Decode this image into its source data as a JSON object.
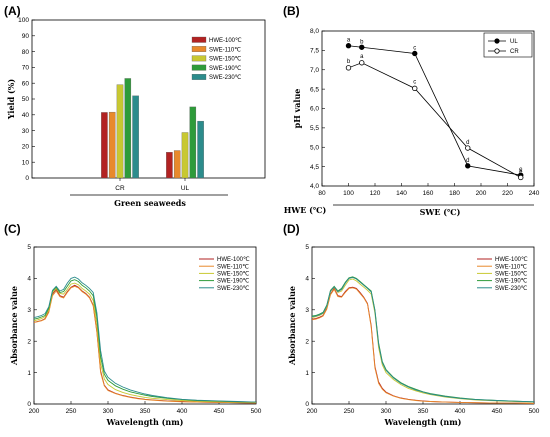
{
  "panels": {
    "A": {
      "label": "(A)"
    },
    "B": {
      "label": "(B)"
    },
    "C": {
      "label": "(C)"
    },
    "D": {
      "label": "(D)"
    }
  },
  "colors": {
    "HWE-100℃": "#b22222",
    "SWE-110℃": "#e8892c",
    "SWE-150℃": "#c8c832",
    "SWE-190℃": "#2e9b3a",
    "SWE-230℃": "#2c8c8c"
  },
  "chart_data": [
    {
      "id": "A",
      "type": "bar",
      "ylabel": "Yield (%)",
      "xlabel": "Green seaweeds",
      "ylim": [
        0,
        100
      ],
      "yticks": [
        0,
        10,
        20,
        30,
        40,
        50,
        60,
        70,
        80,
        90,
        100
      ],
      "categories": [
        "CR",
        "UL"
      ],
      "series": [
        {
          "name": "HWE-100℃",
          "values": [
            41.5,
            16.3
          ]
        },
        {
          "name": "SWE-110℃",
          "values": [
            41.7,
            17.4
          ]
        },
        {
          "name": "SWE-150℃",
          "values": [
            59.1,
            28.8
          ]
        },
        {
          "name": "SWE-190℃",
          "values": [
            63.0,
            45.0
          ]
        },
        {
          "name": "SWE-230℃",
          "values": [
            52.0,
            36.0
          ]
        }
      ],
      "legend_position": "top-right"
    },
    {
      "id": "B",
      "type": "line",
      "ylabel": "pH value",
      "xlabel_left": "HWE (℃)",
      "xlabel_right": "SWE (℃)",
      "xlim": [
        80,
        240
      ],
      "xticks": [
        80,
        100,
        120,
        140,
        160,
        180,
        200,
        220,
        240
      ],
      "ylim": [
        4.0,
        8.0
      ],
      "yticks": [
        "4,0",
        "4,5",
        "5,0",
        "5,5",
        "6,0",
        "6,5",
        "7,0",
        "7,5",
        "8,0"
      ],
      "ytick_values": [
        4.0,
        4.5,
        5.0,
        5.5,
        6.0,
        6.5,
        7.0,
        7.5,
        8.0
      ],
      "series": [
        {
          "name": "UL",
          "marker": "filled",
          "x": [
            100,
            110,
            150,
            190,
            230
          ],
          "y": [
            7.62,
            7.58,
            7.42,
            4.52,
            4.28
          ],
          "labels": [
            "a",
            "b",
            "c",
            "d",
            "e"
          ]
        },
        {
          "name": "CR",
          "marker": "open",
          "x": [
            100,
            110,
            150,
            190,
            230
          ],
          "y": [
            7.05,
            7.18,
            6.52,
            4.98,
            4.22
          ],
          "labels": [
            "b",
            "a",
            "c",
            "d",
            "e"
          ]
        }
      ],
      "legend_position": "top-right"
    },
    {
      "id": "C",
      "type": "line",
      "ylabel": "Absorbance value",
      "xlabel": "Wavelength (nm)",
      "xlim": [
        200,
        500
      ],
      "xticks": [
        200,
        250,
        300,
        350,
        400,
        450,
        500
      ],
      "ylim": [
        0,
        5
      ],
      "yticks": [
        0,
        1,
        2,
        3,
        4,
        5
      ],
      "x": [
        200,
        205,
        210,
        215,
        220,
        225,
        230,
        235,
        240,
        245,
        250,
        255,
        260,
        265,
        270,
        275,
        280,
        285,
        290,
        295,
        300,
        310,
        320,
        330,
        340,
        350,
        360,
        380,
        400,
        420,
        450,
        475,
        500
      ],
      "series": [
        {
          "name": "HWE-100℃",
          "values": [
            2.6,
            2.63,
            2.66,
            2.72,
            2.95,
            3.5,
            3.65,
            3.45,
            3.4,
            3.58,
            3.72,
            3.78,
            3.72,
            3.6,
            3.52,
            3.4,
            3.15,
            2.3,
            1.05,
            0.6,
            0.45,
            0.34,
            0.27,
            0.22,
            0.18,
            0.15,
            0.13,
            0.1,
            0.08,
            0.06,
            0.05,
            0.04,
            0.03
          ]
        },
        {
          "name": "SWE-110℃",
          "values": [
            2.6,
            2.62,
            2.65,
            2.7,
            2.92,
            3.45,
            3.6,
            3.42,
            3.38,
            3.55,
            3.7,
            3.75,
            3.7,
            3.58,
            3.5,
            3.38,
            3.12,
            2.28,
            1.0,
            0.58,
            0.43,
            0.33,
            0.26,
            0.21,
            0.17,
            0.14,
            0.12,
            0.09,
            0.07,
            0.06,
            0.05,
            0.04,
            0.03
          ]
        },
        {
          "name": "SWE-150℃",
          "values": [
            2.65,
            2.68,
            2.72,
            2.78,
            3.0,
            3.55,
            3.68,
            3.52,
            3.5,
            3.65,
            3.82,
            3.85,
            3.8,
            3.68,
            3.6,
            3.5,
            3.3,
            2.55,
            1.3,
            0.8,
            0.62,
            0.46,
            0.37,
            0.3,
            0.25,
            0.21,
            0.18,
            0.14,
            0.11,
            0.09,
            0.07,
            0.06,
            0.05
          ]
        },
        {
          "name": "SWE-190℃",
          "values": [
            2.7,
            2.73,
            2.77,
            2.82,
            3.05,
            3.6,
            3.72,
            3.55,
            3.58,
            3.75,
            3.92,
            3.96,
            3.9,
            3.78,
            3.7,
            3.6,
            3.45,
            2.75,
            1.5,
            0.95,
            0.75,
            0.58,
            0.47,
            0.39,
            0.33,
            0.28,
            0.24,
            0.18,
            0.14,
            0.11,
            0.09,
            0.07,
            0.06
          ]
        },
        {
          "name": "SWE-230℃",
          "values": [
            2.75,
            2.78,
            2.82,
            2.88,
            3.1,
            3.62,
            3.75,
            3.6,
            3.65,
            3.85,
            4.0,
            4.04,
            3.98,
            3.86,
            3.78,
            3.68,
            3.55,
            2.9,
            1.7,
            1.05,
            0.85,
            0.66,
            0.54,
            0.45,
            0.38,
            0.32,
            0.27,
            0.2,
            0.15,
            0.12,
            0.1,
            0.08,
            0.06
          ]
        }
      ],
      "legend_position": "top-right"
    },
    {
      "id": "D",
      "type": "line",
      "ylabel": "Absorbance value",
      "xlabel": "Wavelength (nm)",
      "xlim": [
        200,
        500
      ],
      "xticks": [
        200,
        250,
        300,
        350,
        400,
        450,
        500
      ],
      "ylim": [
        0,
        5
      ],
      "yticks": [
        0,
        1,
        2,
        3,
        4,
        5
      ],
      "x": [
        200,
        205,
        210,
        215,
        220,
        225,
        230,
        235,
        240,
        245,
        250,
        255,
        260,
        265,
        270,
        275,
        280,
        285,
        290,
        295,
        300,
        310,
        320,
        330,
        340,
        350,
        360,
        380,
        400,
        420,
        450,
        475,
        500
      ],
      "series": [
        {
          "name": "HWE-100℃",
          "values": [
            2.7,
            2.72,
            2.76,
            2.82,
            3.05,
            3.5,
            3.68,
            3.45,
            3.42,
            3.58,
            3.7,
            3.72,
            3.68,
            3.55,
            3.4,
            3.2,
            2.5,
            1.2,
            0.7,
            0.5,
            0.38,
            0.26,
            0.19,
            0.15,
            0.12,
            0.1,
            0.08,
            0.06,
            0.05,
            0.04,
            0.03,
            0.03,
            0.02
          ]
        },
        {
          "name": "SWE-110℃",
          "values": [
            2.68,
            2.7,
            2.74,
            2.8,
            3.02,
            3.48,
            3.65,
            3.42,
            3.4,
            3.55,
            3.68,
            3.7,
            3.66,
            3.52,
            3.38,
            3.18,
            2.45,
            1.15,
            0.66,
            0.47,
            0.36,
            0.25,
            0.18,
            0.14,
            0.11,
            0.09,
            0.08,
            0.06,
            0.05,
            0.04,
            0.03,
            0.03,
            0.02
          ]
        },
        {
          "name": "SWE-150℃",
          "values": [
            2.75,
            2.78,
            2.82,
            2.88,
            3.1,
            3.58,
            3.72,
            3.55,
            3.6,
            3.78,
            3.95,
            3.98,
            3.92,
            3.82,
            3.72,
            3.62,
            3.5,
            2.9,
            1.8,
            1.25,
            1.0,
            0.78,
            0.62,
            0.5,
            0.42,
            0.35,
            0.3,
            0.22,
            0.17,
            0.13,
            0.1,
            0.08,
            0.06
          ]
        },
        {
          "name": "SWE-190℃",
          "values": [
            2.8,
            2.82,
            2.86,
            2.92,
            3.15,
            3.62,
            3.75,
            3.6,
            3.68,
            3.88,
            4.02,
            4.05,
            4.0,
            3.9,
            3.8,
            3.7,
            3.6,
            3.0,
            1.95,
            1.35,
            1.1,
            0.85,
            0.68,
            0.56,
            0.47,
            0.39,
            0.33,
            0.25,
            0.19,
            0.15,
            0.11,
            0.09,
            0.07
          ]
        },
        {
          "name": "SWE-230℃",
          "values": [
            2.78,
            2.8,
            2.84,
            2.9,
            3.12,
            3.6,
            3.73,
            3.58,
            3.65,
            3.85,
            4.0,
            4.03,
            3.98,
            3.88,
            3.78,
            3.68,
            3.57,
            2.98,
            1.9,
            1.32,
            1.07,
            0.83,
            0.66,
            0.54,
            0.45,
            0.38,
            0.32,
            0.24,
            0.18,
            0.14,
            0.11,
            0.09,
            0.07
          ]
        }
      ],
      "legend_position": "top-right"
    }
  ]
}
